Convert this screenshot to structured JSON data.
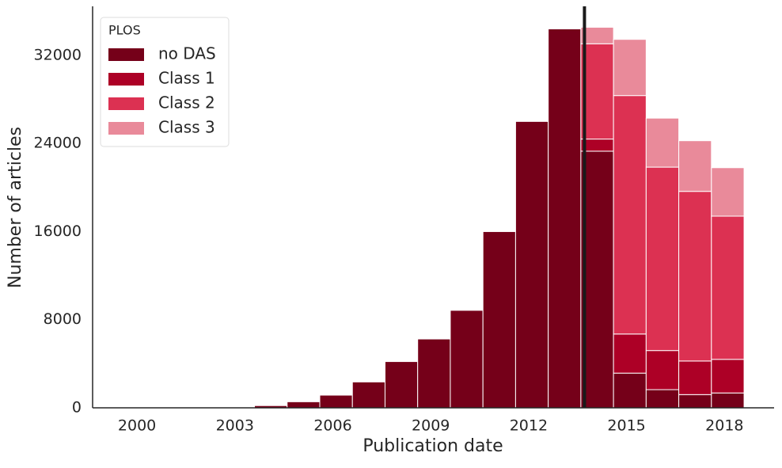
{
  "chart_data": {
    "type": "histogram",
    "x_label": "Publication date",
    "y_label": "Number of articles",
    "legend_title": "PLOS",
    "legend_position": "upper left",
    "bins": [
      2003.6,
      2004.6,
      2005.6,
      2006.6,
      2007.6,
      2008.6,
      2009.6,
      2010.6,
      2011.6,
      2012.6,
      2013.6,
      2014.6,
      2015.6,
      2016.6,
      2017.6,
      2018.6
    ],
    "series": [
      {
        "name": "no DAS",
        "color": "#750019",
        "values": [
          200,
          550,
          1150,
          2350,
          4200,
          6250,
          8850,
          16000,
          26000,
          34400,
          23300,
          3150,
          1650,
          1200,
          1350
        ]
      },
      {
        "name": "Class 1",
        "color": "#ad0026",
        "values": [
          0,
          0,
          0,
          0,
          0,
          0,
          0,
          0,
          0,
          0,
          1100,
          3550,
          3550,
          3050,
          3050
        ]
      },
      {
        "name": "Class 2",
        "color": "#dc3152",
        "values": [
          0,
          0,
          0,
          0,
          0,
          0,
          0,
          0,
          0,
          0,
          8650,
          21650,
          16650,
          15400,
          13000
        ]
      },
      {
        "name": "Class 3",
        "color": "#e98a9a",
        "values": [
          0,
          0,
          0,
          0,
          0,
          0,
          0,
          0,
          0,
          0,
          1500,
          5100,
          4450,
          4600,
          4400
        ]
      }
    ],
    "stacked": true,
    "vline_x": 2013.71,
    "vline_color": "#1a1a1a",
    "xlim": [
      1998.64,
      2019.52
    ],
    "xticks": [
      2000,
      2003,
      2006,
      2009,
      2012,
      2015,
      2018
    ],
    "ylim": [
      0,
      36450
    ],
    "yticks": [
      0,
      8000,
      16000,
      24000,
      32000
    ]
  }
}
